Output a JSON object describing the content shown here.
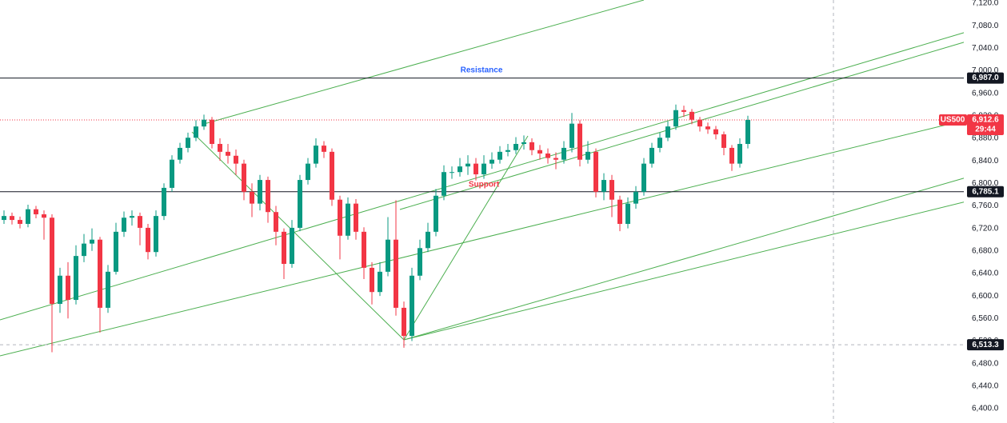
{
  "chart_data": {
    "type": "candlestick",
    "ylim": [
      6374.4,
      7125.6
    ],
    "yticks": [
      {
        "value": 6400,
        "label": "6,400.0"
      },
      {
        "value": 6440,
        "label": "6,440.0"
      },
      {
        "value": 6480,
        "label": "6,480.0"
      },
      {
        "value": 6520,
        "label": "6,520.0"
      },
      {
        "value": 6560,
        "label": "6,560.0"
      },
      {
        "value": 6600,
        "label": "6,600.0"
      },
      {
        "value": 6640,
        "label": "6,640.0"
      },
      {
        "value": 6680,
        "label": "6,680.0"
      },
      {
        "value": 6720,
        "label": "6,720.0"
      },
      {
        "value": 6760,
        "label": "6,760.0"
      },
      {
        "value": 6800,
        "label": "6,800.0"
      },
      {
        "value": 6840,
        "label": "6,840.0"
      },
      {
        "value": 6880,
        "label": "6,880.0"
      },
      {
        "value": 6920,
        "label": "6,920.0"
      },
      {
        "value": 6960,
        "label": "6,960.0"
      },
      {
        "value": 7000,
        "label": "7,000.0"
      },
      {
        "value": 7040,
        "label": "7,040.0"
      },
      {
        "value": 7080,
        "label": "7,080.0"
      },
      {
        "value": 7120,
        "label": "7,120.0"
      }
    ],
    "up_color": "#089981",
    "down_color": "#f23645",
    "open": [
      6735,
      6742,
      6735,
      6728,
      6754,
      6745,
      6739,
      6586,
      6636,
      6593,
      6671,
      6693,
      6700,
      6579,
      6643,
      6714,
      6739,
      6742,
      6721,
      6678,
      6742,
      6792,
      6842,
      6863,
      6881,
      6901,
      6913,
      6870,
      6856,
      6849,
      6835,
      6785,
      6764,
      6806,
      6749,
      6714,
      6657,
      6721,
      6806,
      6835,
      6867,
      6856,
      6771,
      6707,
      6764,
      6714,
      6650,
      6607,
      6643,
      6700,
      6579,
      6529,
      6636,
      6685,
      6714,
      6778,
      6820,
      6820,
      6830,
      6835,
      6816,
      6835,
      6842,
      6856,
      6859,
      6870,
      6873,
      6859,
      6853,
      6845,
      6842,
      6863,
      6906,
      6842,
      6856,
      6785,
      6806,
      6771,
      6728,
      6764,
      6785,
      6835,
      6863,
      6881,
      6901,
      6930,
      6927,
      6913,
      6901,
      6896,
      6887,
      6863,
      6835,
      6870
    ],
    "high": [
      6752,
      6748,
      6741,
      6762,
      6760,
      6752,
      6745,
      6650,
      6660,
      6690,
      6710,
      6720,
      6705,
      6655,
      6730,
      6750,
      6752,
      6748,
      6728,
      6752,
      6800,
      6850,
      6872,
      6890,
      6912,
      6922,
      6918,
      6880,
      6870,
      6860,
      6842,
      6800,
      6815,
      6812,
      6760,
      6720,
      6735,
      6815,
      6845,
      6880,
      6875,
      6862,
      6778,
      6775,
      6772,
      6722,
      6660,
      6660,
      6740,
      6770,
      6590,
      6650,
      6700,
      6730,
      6790,
      6832,
      6830,
      6845,
      6850,
      6845,
      6850,
      6855,
      6866,
      6870,
      6882,
      6885,
      6880,
      6868,
      6862,
      6855,
      6875,
      6925,
      6912,
      6875,
      6862,
      6818,
      6815,
      6778,
      6775,
      6795,
      6845,
      6872,
      6890,
      6910,
      6940,
      6938,
      6932,
      6918,
      6908,
      6902,
      6892,
      6868,
      6880,
      6920
    ],
    "low": [
      6728,
      6727,
      6720,
      6722,
      6738,
      6700,
      6500,
      6570,
      6560,
      6585,
      6660,
      6680,
      6535,
      6570,
      6638,
      6705,
      6725,
      6690,
      6665,
      6670,
      6735,
      6785,
      6835,
      6855,
      6875,
      6895,
      6862,
      6840,
      6835,
      6815,
      6770,
      6740,
      6752,
      6730,
      6690,
      6630,
      6650,
      6715,
      6798,
      6828,
      6845,
      6760,
      6665,
      6700,
      6700,
      6630,
      6585,
      6600,
      6635,
      6565,
      6508,
      6520,
      6628,
      6678,
      6706,
      6770,
      6808,
      6812,
      6815,
      6805,
      6808,
      6826,
      6835,
      6848,
      6852,
      6860,
      6850,
      6842,
      6835,
      6825,
      6835,
      6855,
      6830,
      6835,
      6775,
      6770,
      6740,
      6715,
      6720,
      6755,
      6778,
      6828,
      6855,
      6875,
      6895,
      6918,
      6905,
      6892,
      6888,
      6878,
      6850,
      6822,
      6828,
      6862
    ],
    "close": [
      6742,
      6735,
      6728,
      6754,
      6745,
      6739,
      6586,
      6636,
      6593,
      6671,
      6693,
      6700,
      6579,
      6643,
      6714,
      6739,
      6742,
      6721,
      6678,
      6742,
      6792,
      6842,
      6863,
      6881,
      6901,
      6913,
      6870,
      6856,
      6849,
      6835,
      6785,
      6764,
      6806,
      6749,
      6714,
      6657,
      6721,
      6806,
      6835,
      6867,
      6856,
      6771,
      6707,
      6764,
      6714,
      6650,
      6607,
      6643,
      6700,
      6579,
      6529,
      6636,
      6685,
      6714,
      6778,
      6820,
      6820,
      6830,
      6835,
      6816,
      6835,
      6842,
      6856,
      6859,
      6870,
      6873,
      6859,
      6853,
      6845,
      6842,
      6863,
      6906,
      6842,
      6856,
      6785,
      6806,
      6771,
      6728,
      6764,
      6785,
      6835,
      6863,
      6881,
      6901,
      6930,
      6927,
      6913,
      6901,
      6896,
      6887,
      6863,
      6835,
      6870,
      6912.6
    ],
    "price_lines": [
      {
        "value": 6987,
        "label": "6,987.0",
        "style": "solid"
      },
      {
        "value": 6785.1,
        "label": "6,785.1",
        "style": "solid"
      },
      {
        "value": 6513.3,
        "label": "6,513.3",
        "style": "dashed"
      }
    ],
    "last_price": {
      "value": 6912.6,
      "label": "6,912.6"
    },
    "symbol": "US500",
    "countdown": "29:44",
    "annotations": [
      {
        "text": "Resistance",
        "color": "#2962ff"
      },
      {
        "text": "Support",
        "color": "#f23645"
      }
    ]
  }
}
